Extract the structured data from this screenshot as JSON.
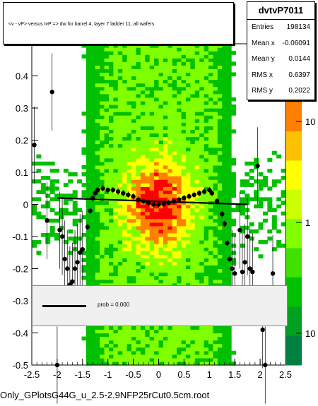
{
  "histogram_title": "<v - vP>       versus  tvP =>  dw for barrel 4, layer 7 ladder 11, all wafers",
  "stats": {
    "name": "dvtvP7011",
    "rows": [
      {
        "label": "Entries",
        "value": "198134"
      },
      {
        "label": "Mean x",
        "value": "-0.06091"
      },
      {
        "label": "Mean y",
        "value": "0.0144"
      },
      {
        "label": "RMS x",
        "value": "0.6397"
      },
      {
        "label": "RMS y",
        "value": "0.2022"
      }
    ]
  },
  "legend": {
    "label": "prob = 0.000"
  },
  "filename": "Only_GPlotsG44G_u_2.5-2.9NFP25rCut0.5cm.root",
  "chart_data": {
    "type": "heatmap",
    "title": "<v - vP>       versus  tvP =>  dw for barrel 4, layer 7 ladder 11, all wafers",
    "xlim": [
      -2.5,
      2.5
    ],
    "ylim": [
      -0.5,
      0.5
    ],
    "x_ticks": [
      "-2.5",
      "-2",
      "-1.5",
      "-1",
      "-0.5",
      "0",
      "0.5",
      "1",
      "1.5",
      "2",
      "2.5"
    ],
    "y_ticks": [
      "-0.5",
      "-0.4",
      "-0.3",
      "-0.2",
      "-0.1",
      "0",
      "0.1",
      "0.2",
      "0.3",
      "0.4"
    ],
    "z_scale": "log",
    "z_ticks": [
      "10",
      "1",
      "10"
    ],
    "palette": [
      "#ffffff",
      "#00c000",
      "#80ff00",
      "#ffff00",
      "#ff8000",
      "#ff0000"
    ],
    "profile_points": [
      {
        "x": -2.45,
        "y": 0.185
      },
      {
        "x": -2.2,
        "y": -0.05
      },
      {
        "x": -2.1,
        "y": 0.35
      },
      {
        "x": -2.0,
        "y": -0.5
      },
      {
        "x": -1.95,
        "y": -0.08
      },
      {
        "x": -1.9,
        "y": -0.1
      },
      {
        "x": -1.85,
        "y": -0.17
      },
      {
        "x": -1.8,
        "y": -0.2
      },
      {
        "x": -1.75,
        "y": -0.25
      },
      {
        "x": -1.7,
        "y": -0.24
      },
      {
        "x": -1.65,
        "y": -0.2
      },
      {
        "x": -1.6,
        "y": -0.18
      },
      {
        "x": -1.55,
        "y": -0.15
      },
      {
        "x": -1.5,
        "y": -0.14
      },
      {
        "x": -1.4,
        "y": -0.07
      },
      {
        "x": -1.35,
        "y": -0.02
      },
      {
        "x": -1.3,
        "y": 0.02
      },
      {
        "x": -1.25,
        "y": 0.035
      },
      {
        "x": -1.2,
        "y": 0.045
      },
      {
        "x": -1.1,
        "y": 0.05
      },
      {
        "x": -1.0,
        "y": 0.045
      },
      {
        "x": -0.9,
        "y": 0.045
      },
      {
        "x": -0.8,
        "y": 0.04
      },
      {
        "x": -0.7,
        "y": 0.035
      },
      {
        "x": -0.6,
        "y": 0.03
      },
      {
        "x": -0.5,
        "y": 0.025
      },
      {
        "x": -0.4,
        "y": 0.015
      },
      {
        "x": -0.3,
        "y": 0.01
      },
      {
        "x": -0.2,
        "y": 0.005
      },
      {
        "x": -0.1,
        "y": 0.0
      },
      {
        "x": 0.0,
        "y": 0.0
      },
      {
        "x": 0.1,
        "y": 0.002
      },
      {
        "x": 0.2,
        "y": 0.005
      },
      {
        "x": 0.3,
        "y": 0.01
      },
      {
        "x": 0.4,
        "y": 0.015
      },
      {
        "x": 0.5,
        "y": 0.02
      },
      {
        "x": 0.6,
        "y": 0.025
      },
      {
        "x": 0.7,
        "y": 0.03
      },
      {
        "x": 0.8,
        "y": 0.035
      },
      {
        "x": 0.9,
        "y": 0.04
      },
      {
        "x": 1.0,
        "y": 0.045
      },
      {
        "x": 1.05,
        "y": 0.035
      },
      {
        "x": 1.15,
        "y": 0.01
      },
      {
        "x": 1.25,
        "y": -0.03
      },
      {
        "x": 1.3,
        "y": -0.06
      },
      {
        "x": 1.35,
        "y": -0.12
      },
      {
        "x": 1.4,
        "y": -0.17
      },
      {
        "x": 1.45,
        "y": -0.2
      },
      {
        "x": 1.5,
        "y": -0.215
      },
      {
        "x": 1.6,
        "y": -0.08
      },
      {
        "x": 1.65,
        "y": -0.21
      },
      {
        "x": 1.7,
        "y": -0.18
      },
      {
        "x": 1.75,
        "y": -0.1
      },
      {
        "x": 1.8,
        "y": -0.2
      },
      {
        "x": 1.85,
        "y": -0.21
      },
      {
        "x": 1.95,
        "y": 0.12
      },
      {
        "x": 2.05,
        "y": -0.39
      },
      {
        "x": 2.1,
        "y": -0.5
      },
      {
        "x": 2.25,
        "y": -0.215
      }
    ],
    "fit_line": {
      "x": [
        -2.0,
        1.75
      ],
      "y": [
        0.02,
        0.0
      ]
    }
  }
}
